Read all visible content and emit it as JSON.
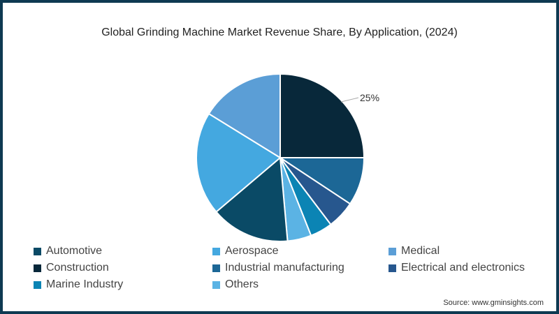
{
  "title": "Global Grinding Machine Market Revenue Share, By Application, (2024)",
  "source": "Source: www.gminsights.com",
  "frame_color": "#0e3a52",
  "chart_data": {
    "type": "pie",
    "title": "Global Grinding Machine Market Revenue Share, By Application, (2024)",
    "start_angle_deg": 0,
    "direction": "clockwise",
    "slices": [
      {
        "label": "Construction",
        "value": 25,
        "color": "#08283a",
        "show_label": true,
        "display": "25%"
      },
      {
        "label": "Industrial manufacturing",
        "value": 9.3,
        "color": "#1c6796"
      },
      {
        "label": "Electrical and electronics",
        "value": 5.4,
        "color": "#27578e"
      },
      {
        "label": "Marine Industry",
        "value": 4.3,
        "color": "#0b84b4"
      },
      {
        "label": "Others",
        "value": 4.6,
        "color": "#5bb3e4"
      },
      {
        "label": "Automotive",
        "value": 15.2,
        "color": "#0a4a66"
      },
      {
        "label": "Aerospace",
        "value": 20.0,
        "color": "#44a8e0"
      },
      {
        "label": "Medical",
        "value": 16.2,
        "color": "#5b9ed6"
      }
    ],
    "legend_position": "bottom",
    "annotations": [
      "25%"
    ]
  },
  "legend": [
    {
      "label": "Automotive",
      "color": "#0a4a66"
    },
    {
      "label": "Aerospace",
      "color": "#44a8e0"
    },
    {
      "label": "Medical",
      "color": "#5b9ed6"
    },
    {
      "label": "Construction",
      "color": "#08283a"
    },
    {
      "label": "Industrial manufacturing",
      "color": "#1c6796"
    },
    {
      "label": "Electrical and electronics",
      "color": "#27578e"
    },
    {
      "label": "Marine Industry",
      "color": "#0b84b4"
    },
    {
      "label": "Others",
      "color": "#5bb3e4"
    }
  ]
}
